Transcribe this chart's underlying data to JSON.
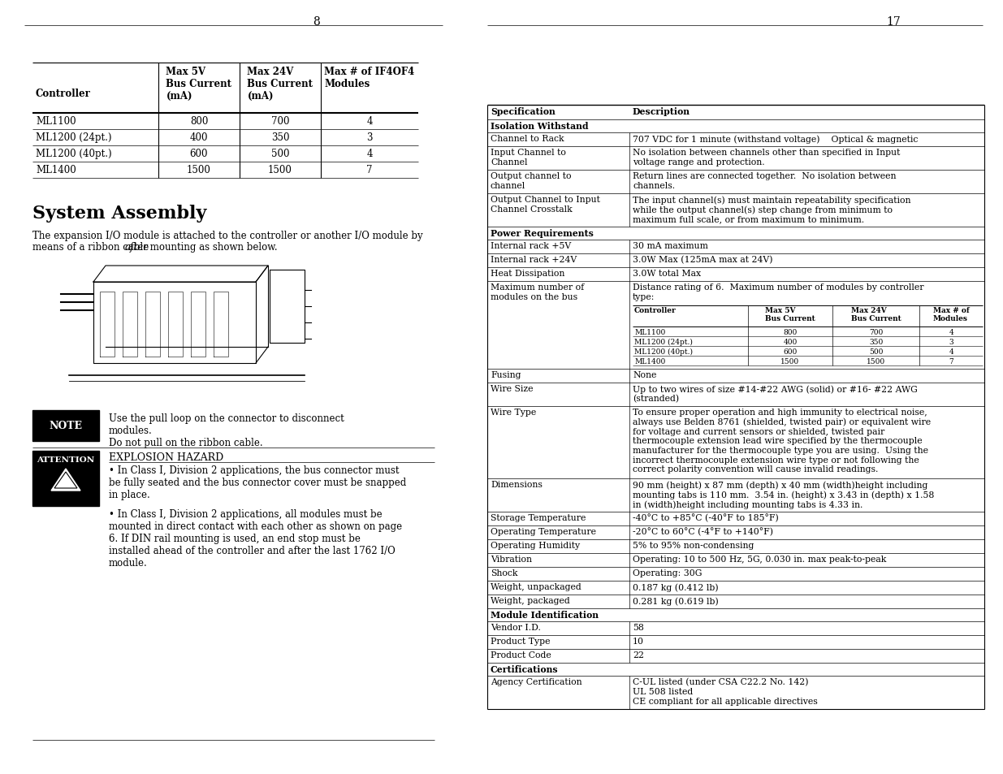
{
  "bg_color": "#ffffff",
  "page_left": "8",
  "page_right": "17",
  "left_table_headers": [
    "Controller",
    "Max 5V\nBus Current\n(mA)",
    "Max 24V\nBus Current\n(mA)",
    "Max # of IF4OF4\nModules"
  ],
  "left_table_rows": [
    [
      "ML1100",
      "800",
      "700",
      "4"
    ],
    [
      "ML1200 (24pt.)",
      "400",
      "350",
      "3"
    ],
    [
      "ML1200 (40pt.)",
      "600",
      "500",
      "4"
    ],
    [
      "ML1400",
      "1500",
      "1500",
      "7"
    ]
  ],
  "system_assembly_title": "System Assembly",
  "system_assembly_line1": "The expansion I/O module is attached to the controller or another I/O module by",
  "system_assembly_line2_pre": "means of a ribbon cable ",
  "system_assembly_italic": "after",
  "system_assembly_line2_post": " mounting as shown below.",
  "note_label": "NOTE",
  "note_text": "Use the pull loop on the connector to disconnect\nmodules.\nDo not pull on the ribbon cable.",
  "attention_label": "ATTENTION",
  "explosion_title": "EXPLOSION HAZARD",
  "attention_p1": "• In Class I, Division 2 applications, the bus connector must\nbe fully seated and the bus connector cover must be snapped\nin place.",
  "attention_p2": "• In Class I, Division 2 applications, all modules must be\nmounted in direct contact with each other as shown on page\n6. If DIN rail mounting is used, an end stop must be\ninstalled ahead of the controller and after the last 1762 I/O\nmodule.",
  "right_spec_rows": [
    {
      "type": "header",
      "spec": "Specification",
      "desc": "Description"
    },
    {
      "type": "section",
      "spec": "Isolation Withstand",
      "desc": ""
    },
    {
      "type": "normal",
      "spec": "Channel to Rack",
      "desc": "707 VDC for 1 minute (withstand voltage)    Optical & magnetic"
    },
    {
      "type": "normal2",
      "spec": "Input Channel to\nChannel",
      "desc": "No isolation between channels other than specified in Input\nvoltage range and protection."
    },
    {
      "type": "normal2",
      "spec": "Output channel to\nchannel",
      "desc": "Return lines are connected together.  No isolation between\nchannels."
    },
    {
      "type": "normal2",
      "spec": "Output Channel to Input\nChannel Crosstalk",
      "desc": "The input channel(s) must maintain repeatability specification\nwhile the output channel(s) step change from minimum to\nmaximum full scale, or from maximum to minimum."
    },
    {
      "type": "section",
      "spec": "Power Requirements",
      "desc": ""
    },
    {
      "type": "normal",
      "spec": "Internal rack +5V",
      "desc": "30 mA maximum"
    },
    {
      "type": "normal",
      "spec": "Internal rack +24V",
      "desc": "3.0W Max (125mA max at 24V)"
    },
    {
      "type": "normal",
      "spec": "Heat Dissipation",
      "desc": "3.0W total Max"
    },
    {
      "type": "subtable",
      "spec": "Maximum number of\nmodules on the bus",
      "desc": "Distance rating of 6.  Maximum number of modules by controller\ntype:"
    },
    {
      "type": "normal",
      "spec": "Fusing",
      "desc": "None"
    },
    {
      "type": "normal2",
      "spec": "Wire Size",
      "desc": "Up to two wires of size #14-#22 AWG (solid) or #16- #22 AWG\n(stranded)"
    },
    {
      "type": "normal7",
      "spec": "Wire Type",
      "desc": "To ensure proper operation and high immunity to electrical noise,\nalways use Belden 8761 (shielded, twisted pair) or equivalent wire\nfor voltage and current sensors or shielded, twisted pair\nthermocouple extension lead wire specified by the thermocouple\nmanufacturer for the thermocouple type you are using.  Using the\nincorrect thermocouple extension wire type or not following the\ncorrect polarity convention will cause invalid readings."
    },
    {
      "type": "normal3",
      "spec": "Dimensions",
      "desc": "90 mm (height) x 87 mm (depth) x 40 mm (width)height including\nmounting tabs is 110 mm.  3.54 in. (height) x 3.43 in (depth) x 1.58\nin (width)height including mounting tabs is 4.33 in."
    },
    {
      "type": "normal",
      "spec": "Storage Temperature",
      "desc": "-40°C to +85°C (-40°F to 185°F)"
    },
    {
      "type": "normal",
      "spec": "Operating Temperature",
      "desc": "-20°C to 60°C (-4°F to +140°F)"
    },
    {
      "type": "normal",
      "spec": "Operating Humidity",
      "desc": "5% to 95% non-condensing"
    },
    {
      "type": "normal",
      "spec": "Vibration",
      "desc": "Operating: 10 to 500 Hz, 5G, 0.030 in. max peak-to-peak"
    },
    {
      "type": "normal",
      "spec": "Shock",
      "desc": "Operating: 30G"
    },
    {
      "type": "normal",
      "spec": "Weight, unpackaged",
      "desc": "0.187 kg (0.412 lb)"
    },
    {
      "type": "normal",
      "spec": "Weight, packaged",
      "desc": "0.281 kg (0.619 lb)"
    },
    {
      "type": "section",
      "spec": "Module Identification",
      "desc": ""
    },
    {
      "type": "normal",
      "spec": "Vendor I.D.",
      "desc": "58"
    },
    {
      "type": "normal",
      "spec": "Product Type",
      "desc": "10"
    },
    {
      "type": "normal",
      "spec": "Product Code",
      "desc": "22"
    },
    {
      "type": "section",
      "spec": "Certifications",
      "desc": ""
    },
    {
      "type": "normal3",
      "spec": "Agency Certification",
      "desc": "C-UL listed (under CSA C22.2 No. 142)\nUL 508 listed\nCE compliant for all applicable directives"
    }
  ],
  "subtable_headers": [
    "Controller",
    "Max 5V\nBus Current",
    "Max 24V\nBus Current",
    "Max # of\nModules"
  ],
  "subtable_rows": [
    [
      "ML1100",
      "800",
      "700",
      "4"
    ],
    [
      "ML1200 (24pt.)",
      "400",
      "350",
      "3"
    ],
    [
      "ML1200 (40pt.)",
      "600",
      "500",
      "4"
    ],
    [
      "ML1400",
      "1500",
      "1500",
      "7"
    ]
  ]
}
